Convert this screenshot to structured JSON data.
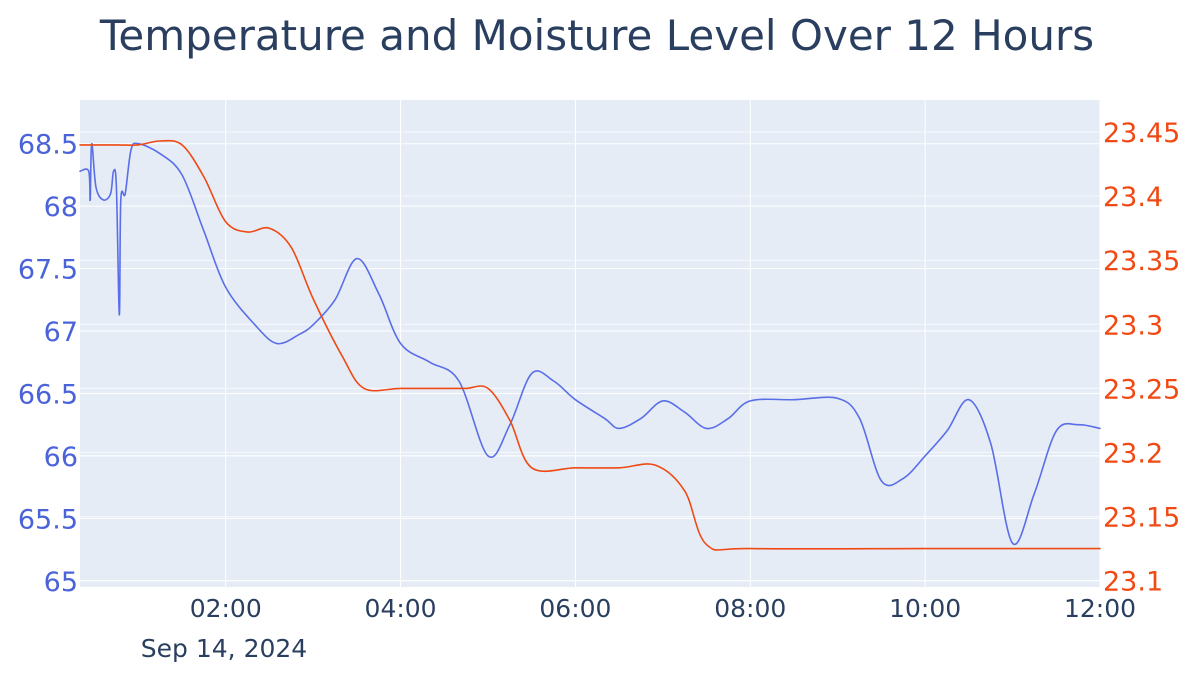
{
  "chart_data": {
    "type": "line",
    "title": "Temperature and Moisture Level Over 12 Hours",
    "date_label": "Sep 14, 2024",
    "xlim": [
      "2024-09-14T00:20",
      "2024-09-14T12:00"
    ],
    "x_ticks": [
      {
        "t": "2024-09-14T02:00",
        "label": "02:00"
      },
      {
        "t": "2024-09-14T04:00",
        "label": "04:00"
      },
      {
        "t": "2024-09-14T06:00",
        "label": "06:00"
      },
      {
        "t": "2024-09-14T08:00",
        "label": "08:00"
      },
      {
        "t": "2024-09-14T10:00",
        "label": "10:00"
      },
      {
        "t": "2024-09-14T12:00",
        "label": "12:00"
      }
    ],
    "y_left": {
      "range": [
        64.95,
        68.85
      ],
      "ticks": [
        65,
        65.5,
        66,
        66.5,
        67,
        67.5,
        68,
        68.5
      ],
      "tick_labels": [
        "65",
        "65.5",
        "66",
        "66.5",
        "67",
        "67.5",
        "68",
        "68.5"
      ],
      "color": "#5a6ee8"
    },
    "y_right": {
      "range": [
        23.095,
        23.475
      ],
      "ticks": [
        23.1,
        23.15,
        23.2,
        23.25,
        23.3,
        23.35,
        23.4,
        23.45
      ],
      "tick_labels": [
        "23.1",
        "23.15",
        "23.2",
        "23.25",
        "23.3",
        "23.35",
        "23.4",
        "23.45"
      ],
      "color": "#f04a14"
    },
    "grid": true,
    "legend": "none",
    "background_color": "#e5ecf6",
    "series": [
      {
        "axis": "left",
        "color": "#5a6ee8",
        "points": [
          [
            "2024-09-14T00:20",
            68.28
          ],
          [
            "2024-09-14T00:26",
            68.28
          ],
          [
            "2024-09-14T00:27",
            68.05
          ],
          [
            "2024-09-14T00:28",
            68.5
          ],
          [
            "2024-09-14T00:31",
            68.15
          ],
          [
            "2024-09-14T00:36",
            68.05
          ],
          [
            "2024-09-14T00:41",
            68.1
          ],
          [
            "2024-09-14T00:43",
            68.28
          ],
          [
            "2024-09-14T00:45",
            68.15
          ],
          [
            "2024-09-14T00:47",
            67.13
          ],
          [
            "2024-09-14T00:48",
            68.05
          ],
          [
            "2024-09-14T00:51",
            68.1
          ],
          [
            "2024-09-14T00:55",
            68.45
          ],
          [
            "2024-09-14T01:00",
            68.5
          ],
          [
            "2024-09-14T01:15",
            68.42
          ],
          [
            "2024-09-14T01:30",
            68.25
          ],
          [
            "2024-09-14T01:45",
            67.8
          ],
          [
            "2024-09-14T02:00",
            67.35
          ],
          [
            "2024-09-14T02:20",
            67.05
          ],
          [
            "2024-09-14T02:35",
            66.9
          ],
          [
            "2024-09-14T02:50",
            66.97
          ],
          [
            "2024-09-14T03:00",
            67.05
          ],
          [
            "2024-09-14T03:15",
            67.25
          ],
          [
            "2024-09-14T03:30",
            67.58
          ],
          [
            "2024-09-14T03:45",
            67.3
          ],
          [
            "2024-09-14T04:00",
            66.9
          ],
          [
            "2024-09-14T04:20",
            66.75
          ],
          [
            "2024-09-14T04:40",
            66.6
          ],
          [
            "2024-09-14T05:00",
            66.0
          ],
          [
            "2024-09-14T05:15",
            66.25
          ],
          [
            "2024-09-14T05:30",
            66.66
          ],
          [
            "2024-09-14T05:45",
            66.6
          ],
          [
            "2024-09-14T06:00",
            66.45
          ],
          [
            "2024-09-14T06:20",
            66.3
          ],
          [
            "2024-09-14T06:30",
            66.22
          ],
          [
            "2024-09-14T06:45",
            66.3
          ],
          [
            "2024-09-14T07:00",
            66.44
          ],
          [
            "2024-09-14T07:15",
            66.35
          ],
          [
            "2024-09-14T07:30",
            66.22
          ],
          [
            "2024-09-14T07:45",
            66.3
          ],
          [
            "2024-09-14T08:00",
            66.44
          ],
          [
            "2024-09-14T08:30",
            66.45
          ],
          [
            "2024-09-14T09:00",
            66.46
          ],
          [
            "2024-09-14T09:15",
            66.3
          ],
          [
            "2024-09-14T09:30",
            65.8
          ],
          [
            "2024-09-14T09:45",
            65.82
          ],
          [
            "2024-09-14T10:00",
            66.0
          ],
          [
            "2024-09-14T10:15",
            66.2
          ],
          [
            "2024-09-14T10:30",
            66.45
          ],
          [
            "2024-09-14T10:45",
            66.1
          ],
          [
            "2024-09-14T11:00",
            65.3
          ],
          [
            "2024-09-14T11:15",
            65.7
          ],
          [
            "2024-09-14T11:30",
            66.2
          ],
          [
            "2024-09-14T11:45",
            66.25
          ],
          [
            "2024-09-14T12:00",
            66.22
          ]
        ]
      },
      {
        "axis": "right",
        "color": "#f04a14",
        "points": [
          [
            "2024-09-14T00:20",
            23.44
          ],
          [
            "2024-09-14T00:45",
            23.44
          ],
          [
            "2024-09-14T01:00",
            23.44
          ],
          [
            "2024-09-14T01:15",
            23.443
          ],
          [
            "2024-09-14T01:30",
            23.44
          ],
          [
            "2024-09-14T01:45",
            23.415
          ],
          [
            "2024-09-14T02:00",
            23.38
          ],
          [
            "2024-09-14T02:15",
            23.372
          ],
          [
            "2024-09-14T02:30",
            23.375
          ],
          [
            "2024-09-14T02:45",
            23.36
          ],
          [
            "2024-09-14T03:00",
            23.32
          ],
          [
            "2024-09-14T03:20",
            23.275
          ],
          [
            "2024-09-14T03:35",
            23.25
          ],
          [
            "2024-09-14T04:00",
            23.25
          ],
          [
            "2024-09-14T04:30",
            23.25
          ],
          [
            "2024-09-14T04:45",
            23.25
          ],
          [
            "2024-09-14T05:00",
            23.25
          ],
          [
            "2024-09-14T05:15",
            23.225
          ],
          [
            "2024-09-14T05:30",
            23.188
          ],
          [
            "2024-09-14T06:00",
            23.188
          ],
          [
            "2024-09-14T06:30",
            23.188
          ],
          [
            "2024-09-14T06:55",
            23.19
          ],
          [
            "2024-09-14T07:15",
            23.17
          ],
          [
            "2024-09-14T07:30",
            23.128
          ],
          [
            "2024-09-14T08:00",
            23.125
          ],
          [
            "2024-09-14T10:00",
            23.125
          ],
          [
            "2024-09-14T11:00",
            23.125
          ],
          [
            "2024-09-14T12:00",
            23.125
          ]
        ]
      }
    ]
  }
}
